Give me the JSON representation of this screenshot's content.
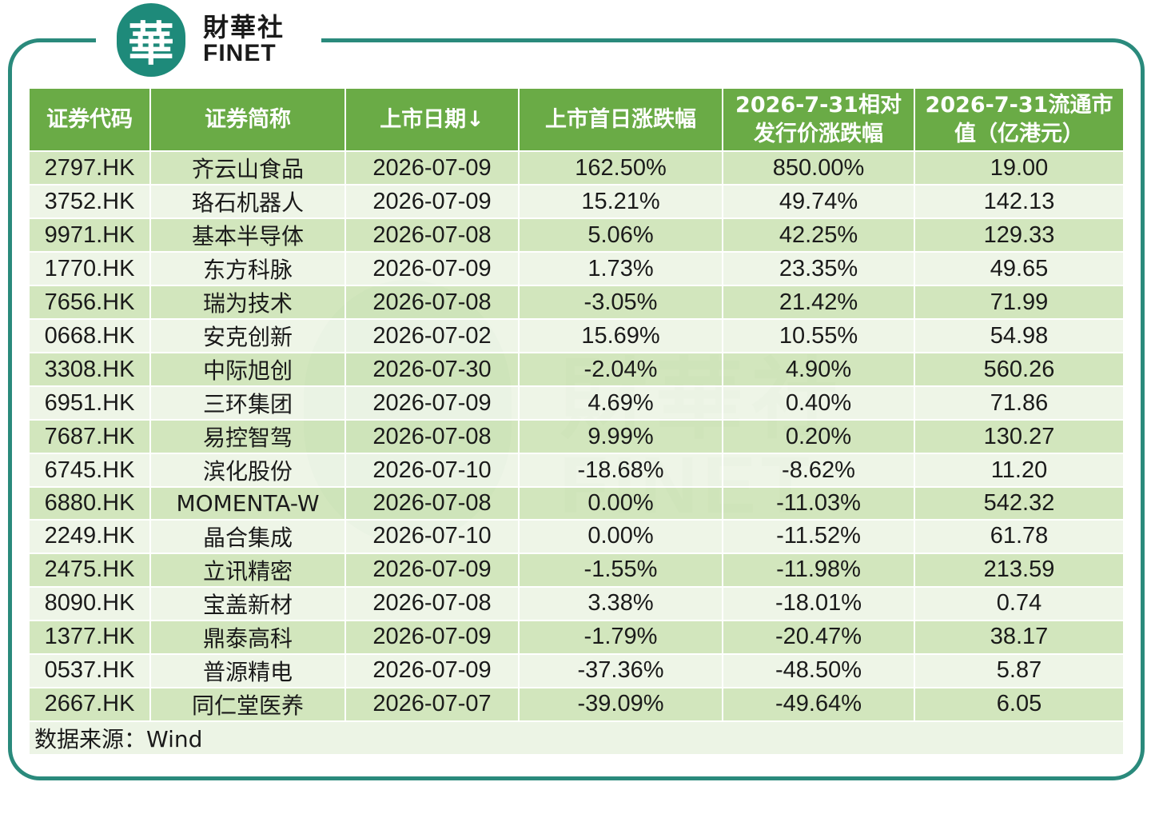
{
  "logo": {
    "seal_char": "華",
    "cn": "財華社",
    "en": "FINET"
  },
  "table": {
    "headers": [
      "证券代码",
      "证券简称",
      "上市日期↓",
      "上市首日涨跌幅",
      "2026-7-31相对发行价涨跌幅",
      "2026-7-31流通市值（亿港元）"
    ],
    "header_lines": [
      [
        "证券代码"
      ],
      [
        "证券简称"
      ],
      [
        "上市日期↓"
      ],
      [
        "上市首日涨跌幅"
      ],
      [
        "2026-7-31相对",
        "发行价涨跌幅"
      ],
      [
        "2026-7-31流通市",
        "值（亿港元）"
      ]
    ],
    "rows": [
      [
        "2797.HK",
        "齐云山食品",
        "2026-07-09",
        "162.50%",
        "850.00%",
        "19.00"
      ],
      [
        "3752.HK",
        "珞石机器人",
        "2026-07-09",
        "15.21%",
        "49.74%",
        "142.13"
      ],
      [
        "9971.HK",
        "基本半导体",
        "2026-07-08",
        "5.06%",
        "42.25%",
        "129.33"
      ],
      [
        "1770.HK",
        "东方科脉",
        "2026-07-09",
        "1.73%",
        "23.35%",
        "49.65"
      ],
      [
        "7656.HK",
        "瑞为技术",
        "2026-07-08",
        "-3.05%",
        "21.42%",
        "71.99"
      ],
      [
        "0668.HK",
        "安克创新",
        "2026-07-02",
        "15.69%",
        "10.55%",
        "54.98"
      ],
      [
        "3308.HK",
        "中际旭创",
        "2026-07-30",
        "-2.04%",
        "4.90%",
        "560.26"
      ],
      [
        "6951.HK",
        "三环集团",
        "2026-07-09",
        "4.69%",
        "0.40%",
        "71.86"
      ],
      [
        "7687.HK",
        "易控智驾",
        "2026-07-08",
        "9.99%",
        "0.20%",
        "130.27"
      ],
      [
        "6745.HK",
        "滨化股份",
        "2026-07-10",
        "-18.68%",
        "-8.62%",
        "11.20"
      ],
      [
        "6880.HK",
        "MOMENTA-W",
        "2026-07-08",
        "0.00%",
        "-11.03%",
        "542.32"
      ],
      [
        "2249.HK",
        "晶合集成",
        "2026-07-10",
        "0.00%",
        "-11.52%",
        "61.78"
      ],
      [
        "2475.HK",
        "立讯精密",
        "2026-07-09",
        "-1.55%",
        "-11.98%",
        "213.59"
      ],
      [
        "8090.HK",
        "宝盖新材",
        "2026-07-08",
        "3.38%",
        "-18.01%",
        "0.74"
      ],
      [
        "1377.HK",
        "鼎泰高科",
        "2026-07-09",
        "-1.79%",
        "-20.47%",
        "38.17"
      ],
      [
        "0537.HK",
        "普源精电",
        "2026-07-09",
        "-37.36%",
        "-48.50%",
        "5.87"
      ],
      [
        "2667.HK",
        "同仁堂医养",
        "2026-07-07",
        "-39.09%",
        "-49.64%",
        "6.05"
      ]
    ],
    "source": "数据来源：Wind"
  },
  "colors": {
    "frame": "#2a8a7c",
    "header_bg": "#6aab46",
    "row_odd": "#c8e1af",
    "row_even": "#eaf3e2"
  }
}
